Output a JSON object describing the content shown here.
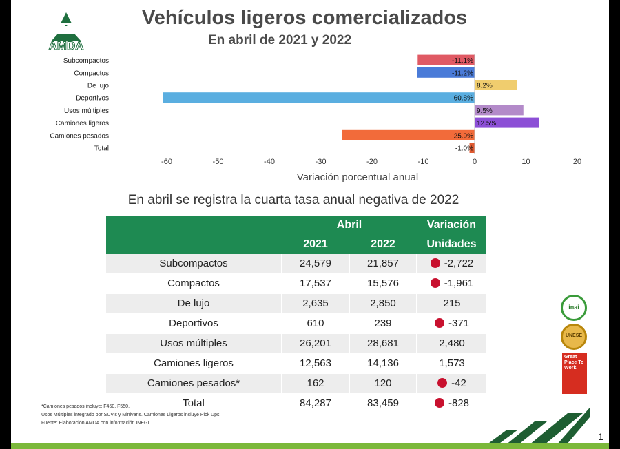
{
  "header": {
    "title": "Vehículos ligeros comercializados",
    "subtitle": "En abril de 2021 y 2022",
    "logo_text": "AMDA"
  },
  "chart_data": {
    "type": "bar",
    "orientation": "horizontal",
    "categories": [
      "Subcompactos",
      "Compactos",
      "De lujo",
      "Deportivos",
      "Usos múltiples",
      "Camiones ligeros",
      "Camiones pesados",
      "Total"
    ],
    "values": [
      -11.1,
      -11.2,
      8.2,
      -60.8,
      9.5,
      12.5,
      -25.9,
      -1.0
    ],
    "labels": [
      "-11.1%",
      "-11.2%",
      "8.2%",
      "-60.8%",
      "9.5%",
      "12.5%",
      "-25.9%",
      "-1.0%"
    ],
    "colors": [
      "#e05a64",
      "#4a7bd8",
      "#f0cd6e",
      "#5aaee0",
      "#b38ac9",
      "#8c4fd6",
      "#f26b3a",
      "#e05a30"
    ],
    "xlabel": "Variación porcentual anual",
    "xlim": [
      -60,
      20
    ],
    "xticks": [
      -60,
      -50,
      -40,
      -30,
      -20,
      -10,
      0,
      10,
      20
    ],
    "grid": false
  },
  "table": {
    "heading": "En abril se registra la cuarta tasa anual negativa de 2022",
    "group_header": "Abril",
    "var_header_1": "Variación",
    "var_header_2": "Unidades",
    "col_2021": "2021",
    "col_2022": "2022",
    "rows": [
      {
        "label": "Subcompactos",
        "y2021": "24,579",
        "y2022": "21,857",
        "var": "-2,722",
        "negative": true
      },
      {
        "label": "Compactos",
        "y2021": "17,537",
        "y2022": "15,576",
        "var": "-1,961",
        "negative": true
      },
      {
        "label": "De lujo",
        "y2021": "2,635",
        "y2022": "2,850",
        "var": "215",
        "negative": false
      },
      {
        "label": "Deportivos",
        "y2021": "610",
        "y2022": "239",
        "var": "-371",
        "negative": true
      },
      {
        "label": "Usos múltiples",
        "y2021": "26,201",
        "y2022": "28,681",
        "var": "2,480",
        "negative": false
      },
      {
        "label": "Camiones ligeros",
        "y2021": "12,563",
        "y2022": "14,136",
        "var": "1,573",
        "negative": false
      },
      {
        "label": "Camiones pesados*",
        "y2021": "162",
        "y2022": "120",
        "var": "-42",
        "negative": true
      },
      {
        "label": "Total",
        "y2021": "84,287",
        "y2022": "83,459",
        "var": "-828",
        "negative": true
      }
    ]
  },
  "notes": [
    "*Camiones pesados incluye: F450, F550.",
    "Usos Múltiples integrado por SUV's y Minivans. Camiones Ligeros incluye Pick Ups.",
    "Fuente: Elaboración AMDA con información INEGI."
  ],
  "badges": {
    "badge1": "inai",
    "badge2": "UNESE",
    "badge3": "Great Place To Work."
  },
  "page_number": "1",
  "colors": {
    "header_green": "#1e8a52",
    "negative_dot": "#c8102e",
    "footer_green": "#7bb83a"
  }
}
